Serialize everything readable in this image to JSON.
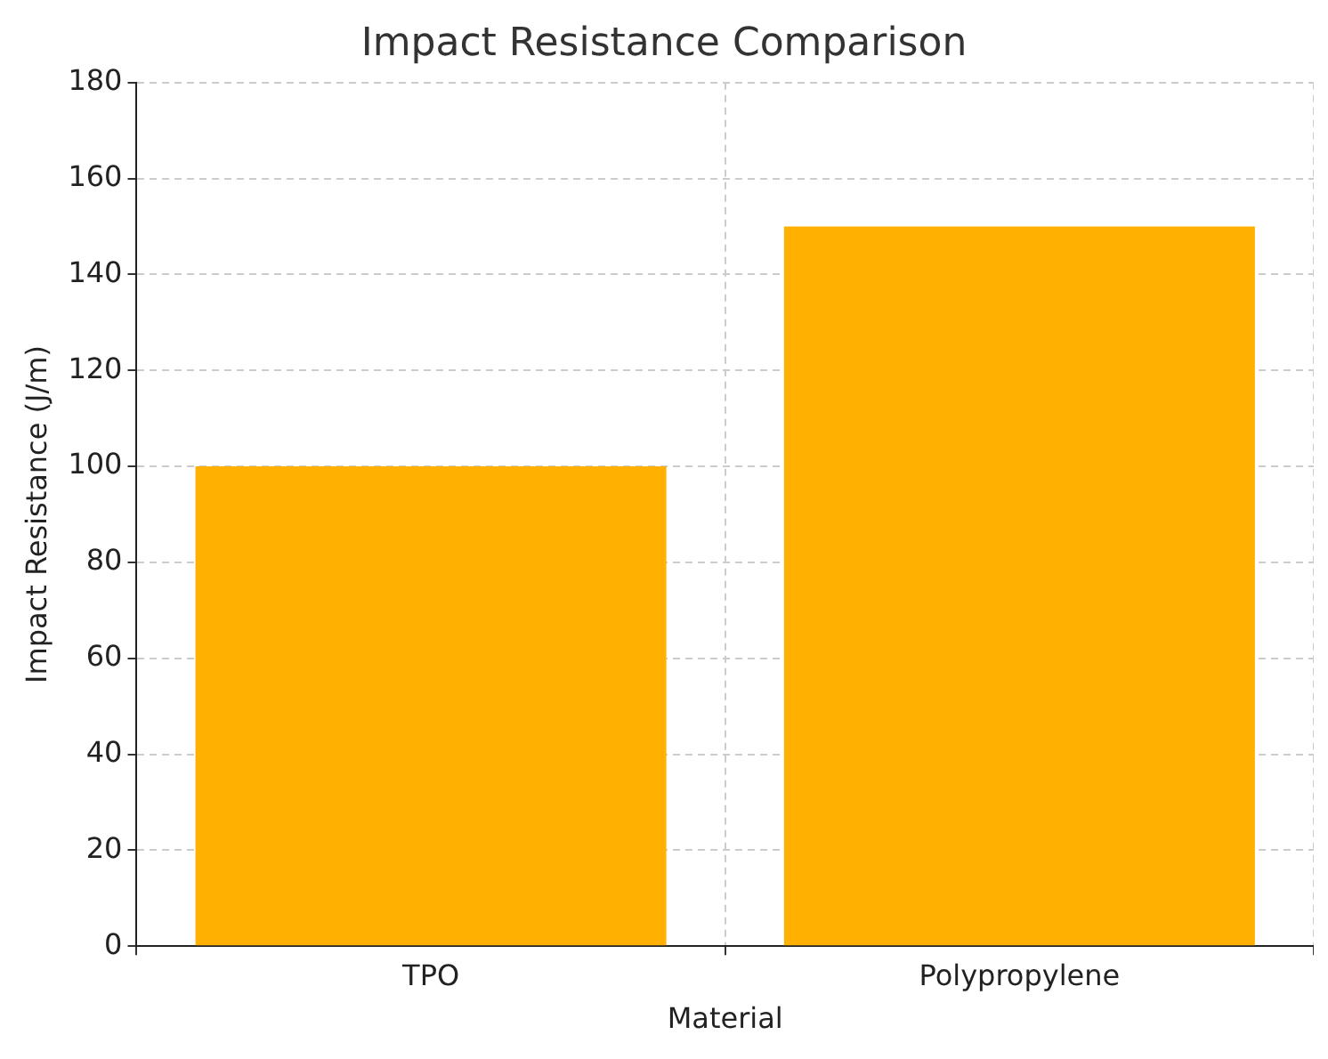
{
  "chart_data": {
    "type": "bar",
    "title": "Impact Resistance Comparison",
    "xlabel": "Material",
    "ylabel": "Impact Resistance (J/m)",
    "categories": [
      "TPO",
      "Polypropylene"
    ],
    "values": [
      100,
      150
    ],
    "color": "#ffb000",
    "ylim": [
      0,
      180
    ],
    "yticks": [
      0,
      20,
      40,
      60,
      80,
      100,
      120,
      140,
      160,
      180
    ],
    "grid": true
  }
}
